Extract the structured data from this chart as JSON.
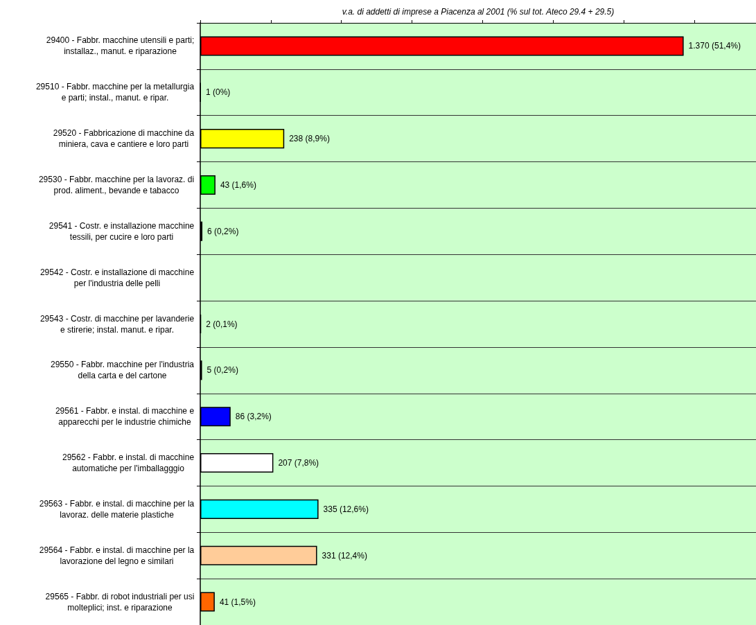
{
  "chart_data": {
    "type": "bar",
    "orientation": "horizontal",
    "xlabel": "v.a. di addetti di imprese a Piacenza al 2001 (% sul tot. Ateco 29.4 + 29.5)",
    "categories": [
      "29400 - Fabbr. macchine utensili e parti;\ninstallaz., manut. e riparazione",
      "29510 - Fabbr. macchine per la metallurgia\ne parti; instal., manut. e ripar.",
      "29520 - Fabbricazione di macchine da\nminiera, cava e cantiere e loro parti",
      "29530 - Fabbr. macchine per la lavoraz. di\nprod. aliment., bevande e tabacco",
      "29541 - Costr. e installazione macchine\ntessili, per cucire e loro parti",
      "29542 - Costr. e installazione di macchine\nper l'industria delle pelli",
      "29543 - Costr. di macchine per lavanderie\ne stirerie; instal. manut. e ripar.",
      "29550 - Fabbr. macchine per l'industria\ndella carta e del cartone",
      "29561 - Fabbr. e instal. di macchine e\napparecchi per le industrie chimiche",
      "29562 - Fabbr. e instal. di macchine\nautomatiche per l'imballagggio",
      "29563 - Fabbr. e instal. di macchine per la\nlavoraz. delle materie plastiche",
      "29564 - Fabbr. e instal. di macchine per la\nlavorazione del legno e similari",
      "29565 - Fabbr. di robot industriali per usi\nmolteplici; inst. e riparazione"
    ],
    "values": [
      1370,
      1,
      238,
      43,
      6,
      null,
      2,
      5,
      86,
      207,
      335,
      331,
      41
    ],
    "colors": [
      "#ff0000",
      "#000000",
      "#ffff00",
      "#00ff00",
      "#800000",
      null,
      "#000000",
      "#000000",
      "#0000ff",
      "#ffffff",
      "#00ffff",
      "#ffcc99",
      "#ff6600"
    ],
    "value_labels": [
      "1.370 (51,4%)",
      "1 (0%)",
      "238 (8,9%)",
      "43 (1,6%)",
      "6 (0,2%)",
      null,
      "2 (0,1%)",
      "5 (0,2%)",
      "86 (3,2%)",
      "207 (7,8%)",
      "335 (12,6%)",
      "331 (12,4%)",
      "41 (1,5%)"
    ],
    "xlim": [
      0,
      1575
    ],
    "xticks": [
      {
        "value": 0,
        "label": null
      },
      {
        "value": 200,
        "label": null
      },
      {
        "value": 400,
        "label": null
      },
      {
        "value": 600,
        "label": null
      },
      {
        "value": 800,
        "label": null
      },
      {
        "value": 1000,
        "label": null
      },
      {
        "value": 1200,
        "label": null
      },
      {
        "value": 1400,
        "label": null
      }
    ],
    "tick_labels": "y",
    "grid": "y"
  }
}
